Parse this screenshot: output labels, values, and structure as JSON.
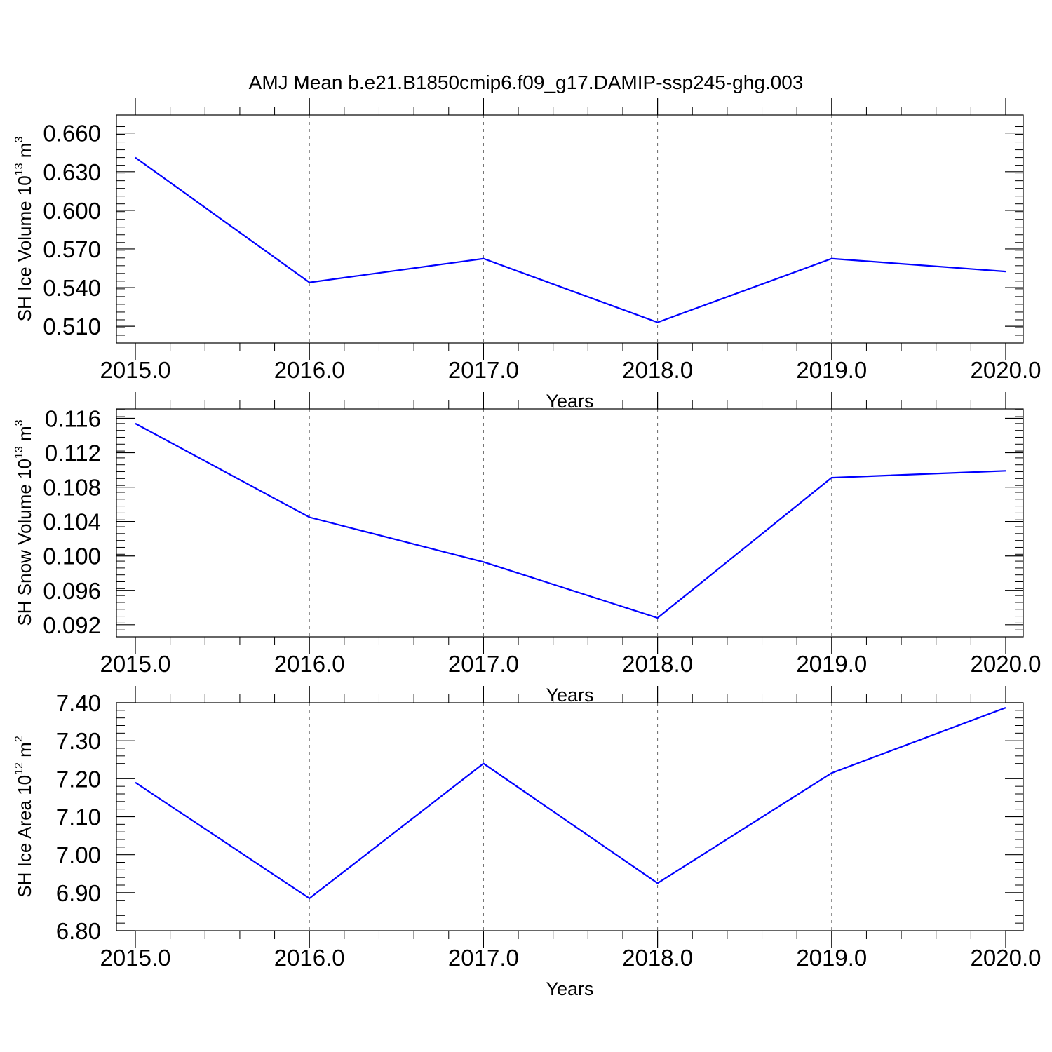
{
  "title": "AMJ Mean b.e21.B1850cmip6.f09_g17.DAMIP-ssp245-ghg.003",
  "colors": {
    "series": "#0000ff",
    "axis": "#000000",
    "grid": "#666666"
  },
  "chart_data": [
    {
      "type": "line",
      "xlabel": "Years",
      "ylabel_parts": {
        "base": "SH Ice Volume 10",
        "exp": "13",
        "unit": " m",
        "unit_exp": "3"
      },
      "x": [
        2015,
        2016,
        2017,
        2018,
        2019,
        2020
      ],
      "x_tick_labels": [
        "2015.0",
        "2016.0",
        "2017.0",
        "2018.0",
        "2019.0",
        "2020.0"
      ],
      "xlim": [
        2015,
        2020.1
      ],
      "values": [
        0.641,
        0.544,
        0.5625,
        0.513,
        0.5625,
        0.5525
      ],
      "ylim": [
        0.497,
        0.674
      ],
      "y_ticks": [
        0.51,
        0.54,
        0.57,
        0.6,
        0.63,
        0.66
      ],
      "y_tick_labels": [
        "0.510",
        "0.540",
        "0.570",
        "0.600",
        "0.630",
        "0.660"
      ],
      "grid": "x-dashed"
    },
    {
      "type": "line",
      "xlabel": "Years",
      "ylabel_parts": {
        "base": "SH Snow Volume 10",
        "exp": "13",
        "unit": " m",
        "unit_exp": "3"
      },
      "x": [
        2015,
        2016,
        2017,
        2018,
        2019,
        2020
      ],
      "x_tick_labels": [
        "2015.0",
        "2016.0",
        "2017.0",
        "2018.0",
        "2019.0",
        "2020.0"
      ],
      "xlim": [
        2015,
        2020.1
      ],
      "values": [
        0.1154,
        0.1045,
        0.0993,
        0.0928,
        0.1091,
        0.1099
      ],
      "ylim": [
        0.0906,
        0.1171
      ],
      "y_ticks": [
        0.092,
        0.096,
        0.1,
        0.104,
        0.108,
        0.112,
        0.116
      ],
      "y_tick_labels": [
        "0.092",
        "0.096",
        "0.100",
        "0.104",
        "0.108",
        "0.112",
        "0.116"
      ],
      "grid": "x-dashed"
    },
    {
      "type": "line",
      "xlabel": "Years",
      "ylabel_parts": {
        "base": "SH Ice Area 10",
        "exp": "12",
        "unit": " m",
        "unit_exp": "2"
      },
      "x": [
        2015,
        2016,
        2017,
        2018,
        2019,
        2020
      ],
      "x_tick_labels": [
        "2015.0",
        "2016.0",
        "2017.0",
        "2018.0",
        "2019.0",
        "2020.0"
      ],
      "xlim": [
        2015,
        2020.1
      ],
      "values": [
        7.19,
        6.885,
        7.24,
        6.925,
        7.215,
        7.387
      ],
      "ylim": [
        6.8,
        7.4
      ],
      "y_ticks": [
        6.8,
        6.9,
        7.0,
        7.1,
        7.2,
        7.3,
        7.4
      ],
      "y_tick_labels": [
        "6.80",
        "6.90",
        "7.00",
        "7.10",
        "7.20",
        "7.30",
        "7.40"
      ],
      "grid": "x-dashed"
    }
  ]
}
